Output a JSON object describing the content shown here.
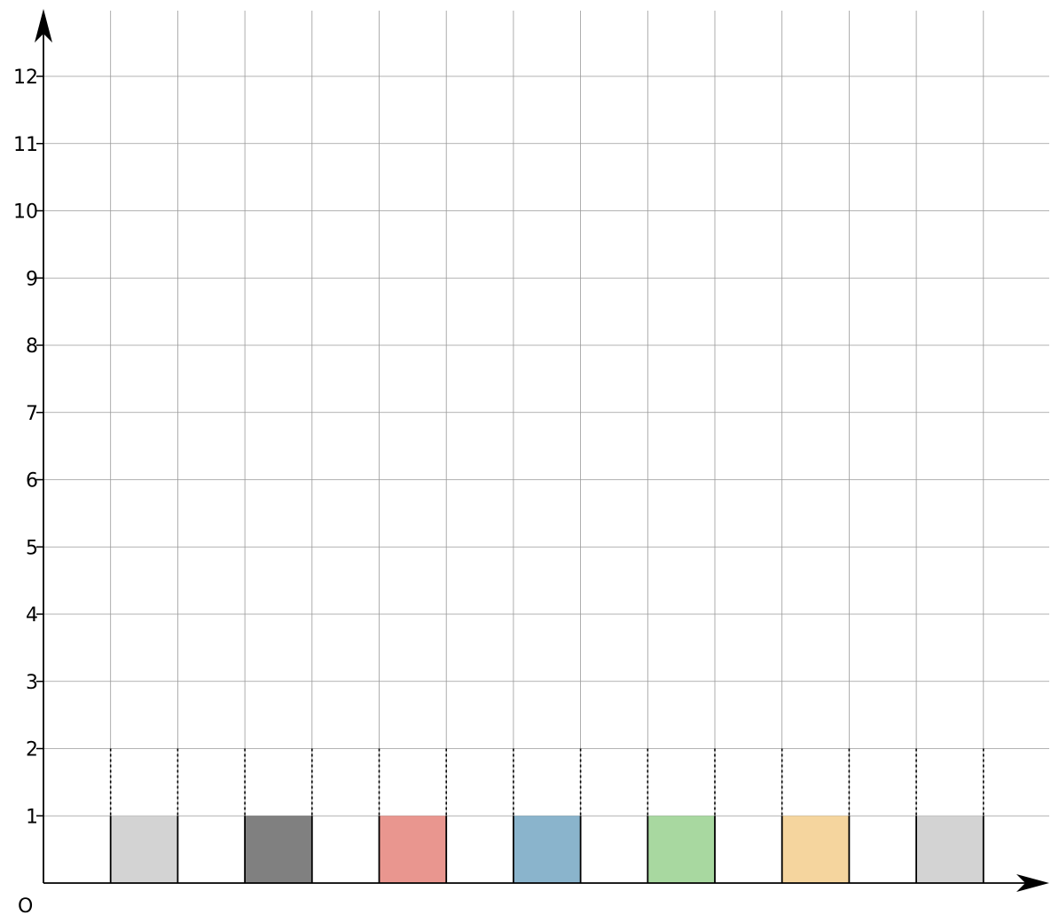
{
  "chart_data": {
    "type": "bar",
    "x_axis": {
      "tick_labels_shown": false,
      "range": [
        0,
        15
      ]
    },
    "y_axis": {
      "range": [
        0,
        12
      ],
      "ticks": [
        "1",
        "2",
        "3",
        "4",
        "5",
        "6",
        "7",
        "8",
        "9",
        "10",
        "11",
        "12"
      ]
    },
    "origin_label": "O",
    "grid": true,
    "bars": [
      {
        "x_start": 1,
        "x_end": 2,
        "value": 1,
        "color": "#d3d3d3"
      },
      {
        "x_start": 3,
        "x_end": 4,
        "value": 1,
        "color": "#808080"
      },
      {
        "x_start": 5,
        "x_end": 6,
        "value": 1,
        "color": "#e9968f"
      },
      {
        "x_start": 7,
        "x_end": 8,
        "value": 1,
        "color": "#8ab4cc"
      },
      {
        "x_start": 9,
        "x_end": 10,
        "value": 1,
        "color": "#a8d8a0"
      },
      {
        "x_start": 11,
        "x_end": 12,
        "value": 1,
        "color": "#f5d59e"
      },
      {
        "x_start": 13,
        "x_end": 14,
        "value": 1,
        "color": "#d3d3d3"
      }
    ],
    "dashed_guides_to": 2
  }
}
